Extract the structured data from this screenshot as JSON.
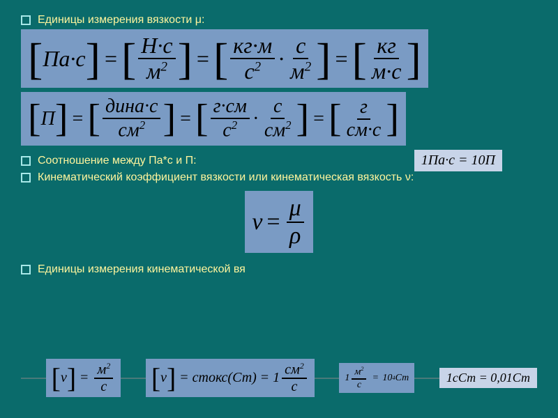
{
  "background_color": "#0a6b6b",
  "formula_bg": "#7a9bc4",
  "inline_bg": "#c8d4e8",
  "text_color": "#fff59d",
  "bullet1": "Единицы измерения вязкости μ:",
  "bullet2": "Соотношение между Па*с и П:",
  "bullet3": "Кинематический коэффициент вязкости или кинематическая вязкость ν:",
  "bullet4": "Единицы измерения кинематической вя",
  "formula1": {
    "lhs": "Па·с",
    "p1_num": "Н·с",
    "p1_den_base": "м",
    "p1_den_exp": "2",
    "p2a_num": "кг·м",
    "p2a_den_base": "с",
    "p2a_den_exp": "2",
    "p2b_num": "с",
    "p2b_den_base": "м",
    "p2b_den_exp": "2",
    "p3_num": "кг",
    "p3_den": "м·с"
  },
  "formula2": {
    "lhs": "П",
    "p1_num": "дина·с",
    "p1_den_base": "см",
    "p1_den_exp": "2",
    "p2a_num": "г·см",
    "p2a_den_base": "с",
    "p2a_den_exp": "2",
    "p2b_num": "с",
    "p2b_den_base": "см",
    "p2b_den_exp": "2",
    "p3_num": "г",
    "p3_den": "см·с"
  },
  "relation": "1Па·с = 10П",
  "nu_formula": {
    "lhs": "ν",
    "num": "μ",
    "den": "ρ"
  },
  "bottom": {
    "b1_lhs": "ν",
    "b1_num_base": "м",
    "b1_num_exp": "2",
    "b1_den": "с",
    "b2_lhs": "ν",
    "b2_rhs": "стокс(Ст)",
    "b2_val": "1",
    "b2_num_base": "см",
    "b2_num_exp": "2",
    "b2_den": "с",
    "b3_lhs": "1",
    "b3_num_base": "м",
    "b3_num_exp": "2",
    "b3_den": "с",
    "b3_rhs_coef": "10",
    "b3_rhs_exp": "4",
    "b3_rhs_unit": "Ст",
    "b4": "1сСт = 0,01Ст"
  }
}
